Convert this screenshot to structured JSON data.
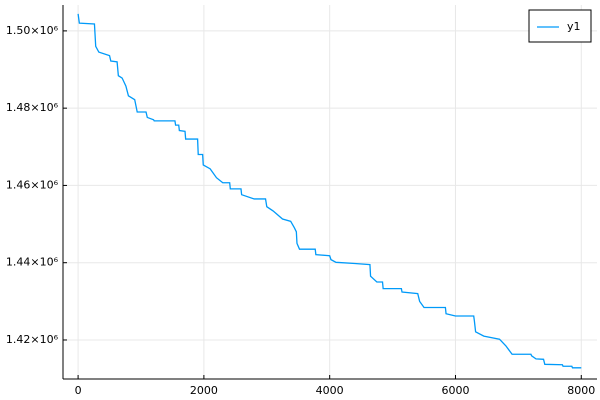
{
  "chart_data": {
    "type": "line",
    "grid": true,
    "legend": "top-right",
    "x": [
      0,
      20,
      260,
      280,
      330,
      500,
      520,
      620,
      640,
      700,
      760,
      800,
      900,
      940,
      1080,
      1100,
      1200,
      1210,
      1540,
      1550,
      1600,
      1610,
      1700,
      1710,
      1900,
      1910,
      1980,
      1990,
      2100,
      2200,
      2300,
      2410,
      2420,
      2590,
      2600,
      2800,
      2980,
      3000,
      3100,
      3250,
      3380,
      3440,
      3470,
      3480,
      3520,
      3770,
      3780,
      4000,
      4020,
      4100,
      4400,
      4640,
      4650,
      4750,
      4840,
      4850,
      5140,
      5150,
      5400,
      5430,
      5500,
      5840,
      5850,
      6000,
      6290,
      6300,
      6320,
      6450,
      6700,
      6800,
      6900,
      7200,
      7210,
      7280,
      7400,
      7420,
      7700,
      7710,
      7850,
      7860,
      8000
    ],
    "series": [
      {
        "name": "y1",
        "color": "#009af9",
        "values": [
          1504400,
          1502000,
          1501800,
          1496000,
          1494500,
          1493600,
          1492200,
          1492000,
          1488400,
          1487800,
          1485700,
          1483200,
          1482200,
          1479000,
          1479000,
          1477600,
          1477000,
          1476700,
          1476700,
          1475600,
          1475600,
          1474200,
          1474000,
          1472000,
          1472000,
          1468000,
          1468000,
          1465300,
          1464300,
          1462000,
          1460700,
          1460700,
          1459100,
          1459100,
          1457600,
          1456500,
          1456500,
          1454500,
          1453400,
          1451300,
          1450700,
          1449000,
          1448000,
          1445000,
          1443500,
          1443500,
          1442100,
          1441800,
          1440800,
          1440100,
          1439800,
          1439500,
          1436500,
          1435000,
          1435000,
          1433300,
          1433300,
          1432400,
          1432000,
          1430000,
          1428400,
          1428400,
          1426800,
          1426200,
          1426200,
          1425000,
          1422100,
          1421000,
          1420200,
          1418500,
          1416300,
          1416300,
          1415900,
          1415100,
          1415000,
          1413700,
          1413600,
          1413200,
          1413200,
          1412800,
          1412800
        ]
      }
    ],
    "xlim": [
      -240,
      8250
    ],
    "xticks": [
      0,
      2000,
      4000,
      6000,
      8000
    ],
    "ylim": [
      1409900,
      1506700
    ],
    "yticks": [
      {
        "value": 1420000,
        "label": "1.42×10⁶"
      },
      {
        "value": 1440000,
        "label": "1.44×10⁶"
      },
      {
        "value": 1460000,
        "label": "1.46×10⁶"
      },
      {
        "value": 1480000,
        "label": "1.48×10⁶"
      },
      {
        "value": 1500000,
        "label": "1.50×10⁶"
      }
    ]
  }
}
